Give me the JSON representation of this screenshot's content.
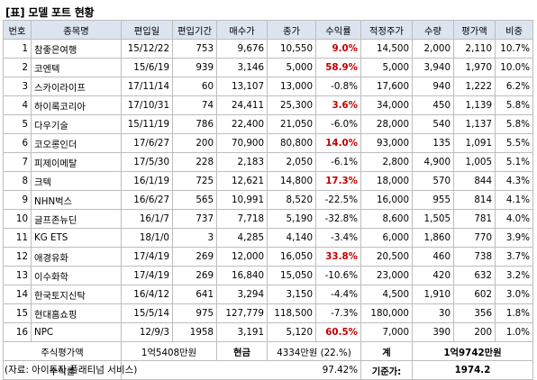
{
  "title": "[표] 모델 포트 현황",
  "headers": [
    "번호",
    "종목명",
    "편입일",
    "편입기간",
    "매수가",
    "종가",
    "수익률",
    "적정주가",
    "수량",
    "평가액",
    "비중"
  ],
  "rows": [
    {
      "no": "1",
      "name": "참좋은여행",
      "date": "15/12/22",
      "period": "753",
      "buy": "9,676",
      "close": "10,550",
      "ret": "9.0%",
      "ret_up": true,
      "target": "14,500",
      "qty": "2,000",
      "value": "2,110",
      "weight": "10.7%"
    },
    {
      "no": "2",
      "name": "코엔텍",
      "date": "15/6/19",
      "period": "939",
      "buy": "3,146",
      "close": "5,000",
      "ret": "58.9%",
      "ret_up": true,
      "target": "5,000",
      "qty": "3,940",
      "value": "1,970",
      "weight": "10.0%"
    },
    {
      "no": "3",
      "name": "스카이라이프",
      "date": "17/11/14",
      "period": "60",
      "buy": "13,107",
      "close": "13,000",
      "ret": "-0.8%",
      "ret_up": false,
      "target": "17,600",
      "qty": "940",
      "value": "1,222",
      "weight": "6.2%"
    },
    {
      "no": "4",
      "name": "하이록코리아",
      "date": "17/10/31",
      "period": "74",
      "buy": "24,411",
      "close": "25,300",
      "ret": "3.6%",
      "ret_up": true,
      "target": "34,000",
      "qty": "450",
      "value": "1,139",
      "weight": "5.8%"
    },
    {
      "no": "5",
      "name": "다우기술",
      "date": "15/11/19",
      "period": "786",
      "buy": "22,400",
      "close": "21,050",
      "ret": "-6.0%",
      "ret_up": false,
      "target": "28,000",
      "qty": "540",
      "value": "1,137",
      "weight": "5.8%"
    },
    {
      "no": "6",
      "name": "코오롱인더",
      "date": "17/6/27",
      "period": "200",
      "buy": "70,900",
      "close": "80,800",
      "ret": "14.0%",
      "ret_up": true,
      "target": "93,000",
      "qty": "135",
      "value": "1,091",
      "weight": "5.5%"
    },
    {
      "no": "7",
      "name": "피제이메탈",
      "date": "17/5/30",
      "period": "228",
      "buy": "2,183",
      "close": "2,050",
      "ret": "-6.1%",
      "ret_up": false,
      "target": "2,800",
      "qty": "4,900",
      "value": "1,005",
      "weight": "5.1%"
    },
    {
      "no": "8",
      "name": "크텍",
      "date": "16/1/19",
      "period": "725",
      "buy": "12,621",
      "close": "14,800",
      "ret": "17.3%",
      "ret_up": true,
      "target": "18,000",
      "qty": "570",
      "value": "844",
      "weight": "4.3%"
    },
    {
      "no": "9",
      "name": "NHN벅스",
      "date": "16/6/27",
      "period": "565",
      "buy": "10,991",
      "close": "8,520",
      "ret": "-22.5%",
      "ret_up": false,
      "target": "16,000",
      "qty": "955",
      "value": "814",
      "weight": "4.1%"
    },
    {
      "no": "10",
      "name": "글프존뉴딘",
      "date": "16/1/7",
      "period": "737",
      "buy": "7,718",
      "close": "5,190",
      "ret": "-32.8%",
      "ret_up": false,
      "target": "8,600",
      "qty": "1,505",
      "value": "781",
      "weight": "4.0%"
    },
    {
      "no": "11",
      "name": "KG ETS",
      "date": "18/1/0",
      "period": "3",
      "buy": "4,285",
      "close": "4,140",
      "ret": "-3.4%",
      "ret_up": false,
      "target": "6,000",
      "qty": "1,860",
      "value": "770",
      "weight": "3.9%"
    },
    {
      "no": "12",
      "name": "애경유화",
      "date": "17/4/19",
      "period": "269",
      "buy": "12,000",
      "close": "16,050",
      "ret": "33.8%",
      "ret_up": true,
      "target": "20,500",
      "qty": "460",
      "value": "738",
      "weight": "3.7%"
    },
    {
      "no": "13",
      "name": "이수화학",
      "date": "17/4/19",
      "period": "269",
      "buy": "16,840",
      "close": "15,050",
      "ret": "-10.6%",
      "ret_up": false,
      "target": "23,000",
      "qty": "420",
      "value": "632",
      "weight": "3.2%"
    },
    {
      "no": "14",
      "name": "한국토지신탁",
      "date": "16/4/12",
      "period": "641",
      "buty": "",
      "buy": "3,294",
      "close": "3,150",
      "ret": "-4.4%",
      "ret_up": false,
      "target": "4,500",
      "qty": "1,910",
      "value": "602",
      "weight": "3.0%"
    },
    {
      "no": "15",
      "name": "현대홈쇼핑",
      "date": "15/5/14",
      "period": "975",
      "buy": "127,779",
      "close": "118,500",
      "ret": "-7.3%",
      "ret_up": false,
      "target": "180,000",
      "qty": "30",
      "value": "356",
      "weight": "1.8%"
    },
    {
      "no": "16",
      "name": "NPC",
      "date": "12/9/3",
      "period": "1958",
      "buy": "3,191",
      "close": "5,120",
      "ret": "60.5%",
      "ret_up": true,
      "target": "7,000",
      "qty": "390",
      "value": "200",
      "weight": "1.0%"
    }
  ],
  "summary": {
    "stock_label": "주식평가액",
    "stock_value": "1억5408만원",
    "cash_label": "현금",
    "cash_value": "4334만원 (22.%)",
    "total_label": "계",
    "total_value": "1억9742만원",
    "return_label": "수익률",
    "return_value": "97.42%",
    "base_label": "기준가:",
    "base_value": "1974.2"
  },
  "source": "(자료: 아이투자 플래티넘 서비스)",
  "colors": {
    "header_bg": "#dce4ef",
    "positive_return": "#c00000",
    "border": "#bdbdbd"
  }
}
